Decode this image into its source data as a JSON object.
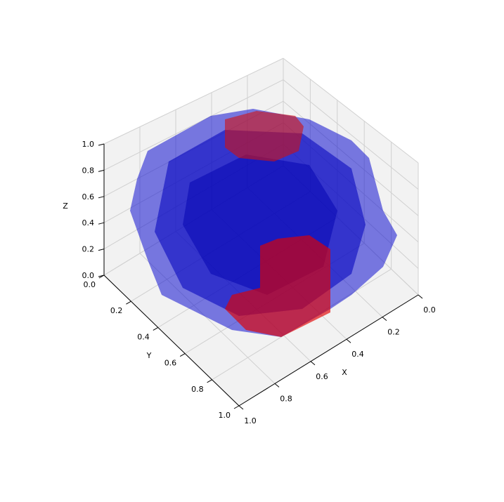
{
  "chart_data": {
    "type": "voxel3d",
    "xlabel": "X",
    "ylabel": "Y",
    "zlabel": "Z",
    "xlim": [
      0,
      1
    ],
    "ylim": [
      0,
      1
    ],
    "zlim": [
      0,
      1
    ],
    "xticks": [
      {
        "value": 0,
        "label": "0.0"
      },
      0.2,
      0.4,
      0.6,
      0.8,
      {
        "value": 1,
        "label": "1.0"
      }
    ],
    "yticks": [
      {
        "value": 0,
        "label": "0.0"
      },
      0.2,
      0.4,
      0.6,
      0.8,
      {
        "value": 1,
        "label": "1.0"
      }
    ],
    "zticks": [
      {
        "value": 0,
        "label": "0.0"
      },
      0.2,
      0.4,
      0.6,
      0.8,
      {
        "value": 1,
        "label": "1.0"
      }
    ],
    "grid": true
  }
}
